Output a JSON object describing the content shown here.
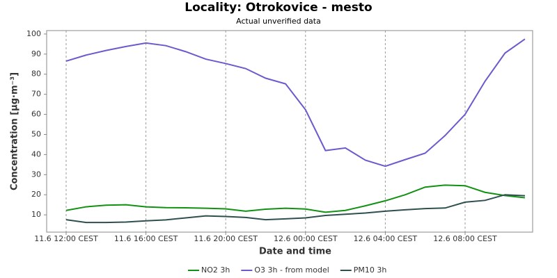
{
  "chart_data": {
    "type": "line",
    "title": "Locality: Otrokovice - mesto",
    "subtitle": "Actual unverified data",
    "x_label": "Date and time",
    "y_label": "Concentration [µg·m⁻³]",
    "categories": [
      "11.6 12:00 CEST",
      null,
      null,
      null,
      "11.6 16:00 CEST",
      null,
      null,
      null,
      "11.6 20:00 CEST",
      null,
      null,
      null,
      "12.6 00:00 CEST",
      null,
      null,
      null,
      "12.6 04:00 CEST",
      null,
      null,
      null,
      "12.6 08:00 CEST",
      null,
      null,
      null
    ],
    "series": [
      {
        "name": "NO2 3h",
        "color": "#119111",
        "values": [
          12.2,
          14,
          14.8,
          15,
          14,
          13.6,
          13.5,
          13.3,
          13,
          11.8,
          12.8,
          13.3,
          12.9,
          11.3,
          12.2,
          14.5,
          17,
          20,
          23.8,
          24.8,
          24.5,
          21.2,
          19.6,
          18.5
        ]
      },
      {
        "name": "O3 3h - from model",
        "color": "#6a5acd",
        "values": [
          86.5,
          89.5,
          91.8,
          93.8,
          95.5,
          94.2,
          91.2,
          87.5,
          85.3,
          82.8,
          78,
          75.2,
          62.3,
          42,
          43.3,
          37.2,
          34.2,
          37.5,
          40.7,
          49.5,
          60,
          76.5,
          90.5,
          97.5
        ]
      },
      {
        "name": "PM10 3h",
        "color": "#2f4f4f",
        "values": [
          7.6,
          6.2,
          6.2,
          6.4,
          7,
          7.5,
          8.5,
          9.5,
          9.2,
          8.7,
          7.6,
          8,
          8.5,
          9.7,
          10.3,
          10.9,
          11.8,
          12.5,
          13.1,
          13.4,
          16.3,
          17.2,
          20,
          19.5
        ]
      }
    ],
    "ylim": [
      1.4,
      101.7
    ],
    "yticks": [
      10,
      20,
      30,
      40,
      50,
      60,
      70,
      80,
      90,
      100
    ],
    "grid": "x",
    "legend": "bottom"
  }
}
